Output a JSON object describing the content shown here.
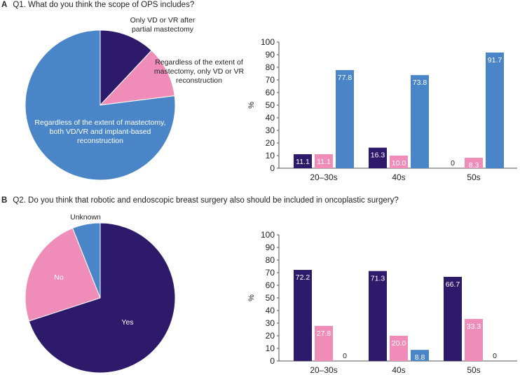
{
  "colors": {
    "dark": "#2e1a6a",
    "pink": "#f08cb8",
    "blue": "#4a85c8"
  },
  "panelA": {
    "letter": "A",
    "question": "Q1. What do you think the scope of OPS includes?"
  },
  "panelB": {
    "letter": "B",
    "question": "Q2. Do you think that robotic and endoscopic breast surgery also should be included in oncoplastic surgery?"
  },
  "chart_data": [
    {
      "type": "pie",
      "title": "Q1. What do you think the scope of OPS includes?",
      "slices": [
        {
          "label": "Only VD or VR after partial mastectomy",
          "lines": [
            "Only VD or VR after",
            "partial mastectomy"
          ],
          "value": 12,
          "color": "#2e1a6a"
        },
        {
          "label": "Regardless of the extent of mastectomy, only VD or VR reconstruction",
          "lines": [
            "Regardless of the extent of",
            "mastectomy, only VD or VR",
            "reconstruction"
          ],
          "value": 11,
          "color": "#f08cb8"
        },
        {
          "label": "Regardless of the extent of mastectomy, both VD/VR and implant-based reconstruction",
          "lines": [
            "Regardless of the extent of mastectomy,",
            "both VD/VR and implant-based",
            "reconstruction"
          ],
          "value": 77,
          "color": "#4a85c8"
        }
      ]
    },
    {
      "type": "bar",
      "ylabel": "%",
      "ylim": [
        0,
        100
      ],
      "yticks": [
        0,
        10,
        20,
        30,
        40,
        50,
        60,
        70,
        80,
        90,
        100
      ],
      "categories": [
        "20–30s",
        "40s",
        "50s"
      ],
      "series": [
        {
          "name": "Only VD or VR after partial mastectomy",
          "color": "#2e1a6a",
          "values": [
            11.1,
            16.3,
            0
          ],
          "labels": [
            "11.1",
            "16.3",
            "0"
          ]
        },
        {
          "name": "Regardless of the extent of mastectomy, only VD or VR reconstruction",
          "color": "#f08cb8",
          "values": [
            11.1,
            10.0,
            8.3
          ],
          "labels": [
            "11.1",
            "10.0",
            "8.3"
          ]
        },
        {
          "name": "Regardless of the extent of mastectomy, both VD/VR and implant-based reconstruction",
          "color": "#4a85c8",
          "values": [
            77.8,
            73.8,
            91.7
          ],
          "labels": [
            "77.8",
            "73.8",
            "91.7"
          ]
        }
      ]
    },
    {
      "type": "pie",
      "title": "Q2. Do you think that robotic and endoscopic breast surgery also should be included in oncoplastic surgery?",
      "slices": [
        {
          "label": "Yes",
          "lines": [
            "Yes"
          ],
          "value": 70,
          "color": "#2e1a6a"
        },
        {
          "label": "No",
          "lines": [
            "No"
          ],
          "value": 24,
          "color": "#f08cb8"
        },
        {
          "label": "Unknown",
          "lines": [
            "Unknown"
          ],
          "value": 6,
          "color": "#4a85c8"
        }
      ]
    },
    {
      "type": "bar",
      "ylabel": "%",
      "ylim": [
        0,
        100
      ],
      "yticks": [
        0,
        10,
        20,
        30,
        40,
        50,
        60,
        70,
        80,
        90,
        100
      ],
      "categories": [
        "20–30s",
        "40s",
        "50s"
      ],
      "series": [
        {
          "name": "Yes",
          "color": "#2e1a6a",
          "values": [
            72.2,
            71.3,
            66.7
          ],
          "labels": [
            "72.2",
            "71.3",
            "66.7"
          ]
        },
        {
          "name": "No",
          "color": "#f08cb8",
          "values": [
            27.8,
            20.0,
            33.3
          ],
          "labels": [
            "27.8",
            "20.0",
            "33.3"
          ]
        },
        {
          "name": "Unknown",
          "color": "#4a85c8",
          "values": [
            0,
            8.8,
            0
          ],
          "labels": [
            "0",
            "8.8",
            "0"
          ]
        }
      ]
    }
  ]
}
